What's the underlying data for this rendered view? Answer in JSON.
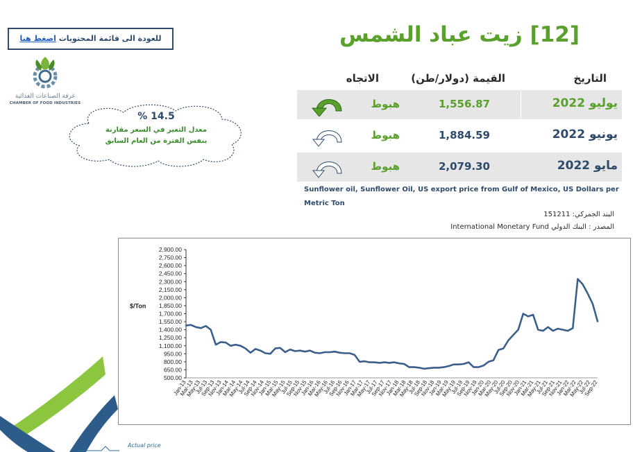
{
  "back_link": {
    "text": "للعودة الى قائمة المحتويات ",
    "link": "اضغط هنا"
  },
  "logo": {
    "ar": "غرفة الصناعات الغذائية",
    "en": "CHAMBER OF FOOD INDUSTRIES"
  },
  "change_cloud": {
    "percent": "14.5 %",
    "line1": "معدل التغير في السعر مقارنة",
    "line2": "بنفس الفترة من العام السابق"
  },
  "title": "[12] زيت عباد الشمس",
  "table": {
    "headers": {
      "date": "التاريخ",
      "value": "القيمة (دولار/طن)",
      "direction": "الاتجاه"
    },
    "rows": [
      {
        "date": "يوليو 2022",
        "value": "1,556.87",
        "direction": "هبوط"
      },
      {
        "date": "يونيو 2022",
        "value": "1,884.59",
        "direction": "هبوط"
      },
      {
        "date": "مايو 2022",
        "value": "2,079.30",
        "direction": "هبوط"
      }
    ]
  },
  "description": "Sunflower oil, Sunflower Oil, US export price from Gulf of Mexico, US Dollars per Metric Ton",
  "customs_code": "البند الجمركي: 151211",
  "source": "المصدر : البنك الدولي International Monetary Fund",
  "colors": {
    "title": "#5aa02c",
    "line": "#3b5f8a",
    "accent_green": "#5aa02c"
  },
  "chart_data": {
    "type": "line",
    "ylabel": "$/Ton",
    "ylim": [
      500,
      2900
    ],
    "yticks": [
      "2,900.00",
      "2,750.00",
      "2,600.00",
      "2,450.00",
      "2,300.00",
      "2,150.00",
      "2,000.00",
      "1,850.00",
      "1,700.00",
      "1,550.00",
      "1,400.00",
      "1,250.00",
      "1,100.00",
      "950.00",
      "800.00",
      "650.00",
      "500.00"
    ],
    "xticks": [
      "Jan-13",
      "Mar-13",
      "May-13",
      "Jul-13",
      "Sep-13",
      "Nov-13",
      "Jan-14",
      "Mar-14",
      "May-14",
      "Jul-14",
      "Sep-14",
      "Nov-14",
      "Jan-15",
      "Mar-15",
      "May-15",
      "Jul-15",
      "Sep-15",
      "Nov-15",
      "Jan-16",
      "Mar-16",
      "May-16",
      "Jul-16",
      "Sep-16",
      "Nov-16",
      "Jan-17",
      "Mar-17",
      "May-17",
      "Jul-17",
      "Sep-17",
      "Nov-17",
      "Jan-18",
      "Mar-18",
      "May-18",
      "Jul-18",
      "Sep-18",
      "Nov-18",
      "Jan-19",
      "Mar-19",
      "May-19",
      "Jul-19",
      "Sep-19",
      "Nov-19",
      "Jan-20",
      "Mar-20",
      "May-20",
      "Jul-20",
      "Sep-20",
      "Nov-20",
      "Jan-21",
      "Mar-21",
      "May-21",
      "Jul-21",
      "Sep-21",
      "Nov-21",
      "Jan-22",
      "Mar-22",
      "May-22",
      "Jul-22",
      "Sep-22"
    ],
    "series": [
      {
        "legend": "Actual price",
        "values": [
          1480,
          1490,
          1450,
          1430,
          1470,
          1400,
          1120,
          1170,
          1160,
          1100,
          1120,
          1100,
          1050,
          970,
          1040,
          1010,
          960,
          950,
          1050,
          1060,
          980,
          1030,
          1000,
          1010,
          990,
          1010,
          970,
          960,
          980,
          980,
          990,
          970,
          960,
          960,
          930,
          800,
          810,
          790,
          790,
          780,
          790,
          780,
          790,
          770,
          760,
          700,
          700,
          690,
          670,
          680,
          690,
          690,
          700,
          720,
          750,
          750,
          760,
          790,
          700,
          700,
          730,
          800,
          830,
          1020,
          1050,
          1200,
          1300,
          1400,
          1700,
          1650,
          1680,
          1400,
          1380,
          1450,
          1380,
          1420,
          1400,
          1380,
          1430,
          2350,
          2250,
          2079,
          1885,
          1557
        ]
      }
    ]
  }
}
